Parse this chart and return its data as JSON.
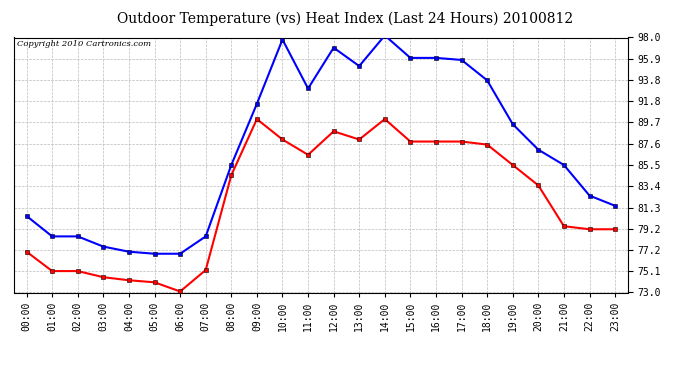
{
  "title": "Outdoor Temperature (vs) Heat Index (Last 24 Hours) 20100812",
  "copyright_text": "Copyright 2010 Cartronics.com",
  "hours": [
    "00:00",
    "01:00",
    "02:00",
    "03:00",
    "04:00",
    "05:00",
    "06:00",
    "07:00",
    "08:00",
    "09:00",
    "10:00",
    "11:00",
    "12:00",
    "13:00",
    "14:00",
    "15:00",
    "16:00",
    "17:00",
    "18:00",
    "19:00",
    "20:00",
    "21:00",
    "22:00",
    "23:00"
  ],
  "blue_line": [
    80.5,
    78.5,
    78.5,
    77.5,
    77.0,
    76.8,
    76.8,
    78.5,
    85.5,
    91.5,
    97.8,
    93.0,
    97.0,
    95.2,
    98.2,
    96.0,
    96.0,
    95.8,
    93.8,
    89.5,
    87.0,
    85.5,
    82.5,
    81.5
  ],
  "red_line": [
    77.0,
    75.1,
    75.1,
    74.5,
    74.2,
    74.0,
    73.1,
    75.2,
    84.5,
    90.0,
    88.0,
    86.5,
    88.8,
    88.0,
    90.0,
    87.8,
    87.8,
    87.8,
    87.5,
    85.5,
    83.5,
    79.5,
    79.2,
    79.2
  ],
  "blue_color": "#0000FF",
  "red_color": "#FF0000",
  "background_color": "#FFFFFF",
  "plot_bg_color": "#FFFFFF",
  "grid_color": "#BBBBBB",
  "ylim": [
    73.0,
    98.0
  ],
  "yticks": [
    73.0,
    75.1,
    77.2,
    79.2,
    81.3,
    83.4,
    85.5,
    87.6,
    89.7,
    91.8,
    93.8,
    95.9,
    98.0
  ],
  "title_fontsize": 10,
  "copyright_fontsize": 6,
  "tick_fontsize": 7,
  "marker": "s",
  "marker_size": 2.5,
  "line_width": 1.5
}
